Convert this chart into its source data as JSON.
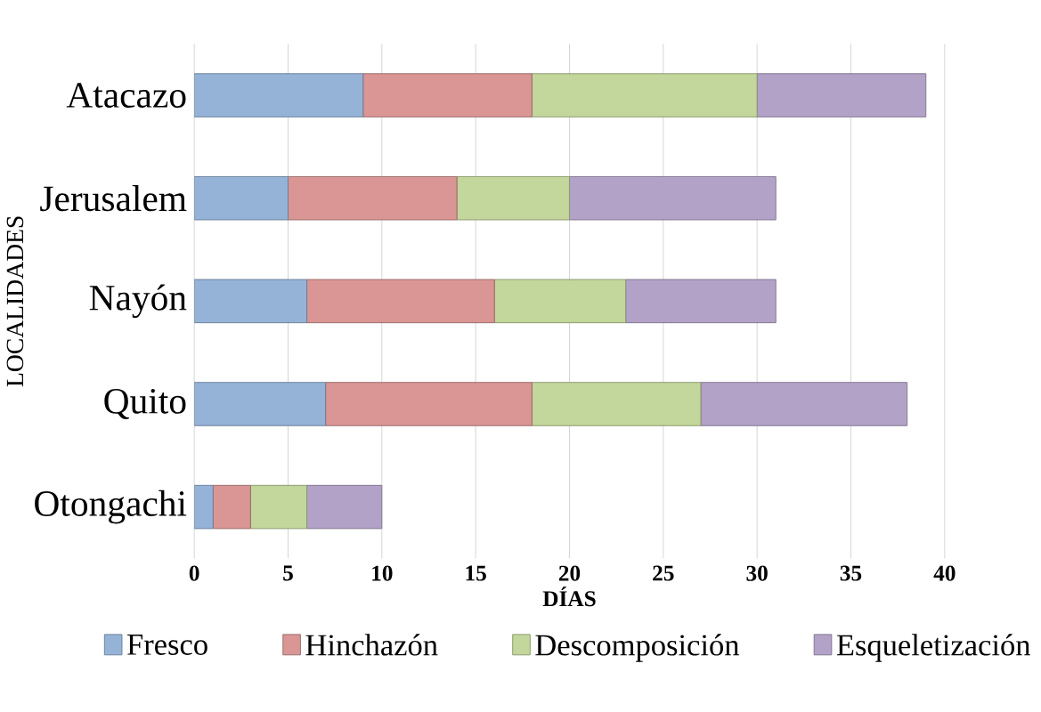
{
  "chart_data": {
    "type": "bar",
    "orientation": "horizontal",
    "stacked": true,
    "categories": [
      "Atacazo",
      "Jerusalem",
      "Nayón",
      "Quito",
      "Otongachi"
    ],
    "series": [
      {
        "name": "Fresco",
        "color": "#95b3d7",
        "values": [
          9,
          5,
          6,
          7,
          1
        ]
      },
      {
        "name": "Hinchazón",
        "color": "#d99694",
        "values": [
          9,
          9,
          10,
          11,
          2
        ]
      },
      {
        "name": "Descomposición",
        "color": "#c3d69b",
        "values": [
          12,
          6,
          7,
          9,
          3
        ]
      },
      {
        "name": "Esqueletización",
        "color": "#b3a2c7",
        "values": [
          9,
          11,
          8,
          11,
          4
        ]
      }
    ],
    "xlim": [
      0,
      40
    ],
    "xticks": [
      0,
      5,
      10,
      15,
      20,
      25,
      30,
      35,
      40
    ],
    "xlabel": "DÍAS",
    "ylabel": "LOCALIDADES",
    "grid": "x",
    "legend": "bottom"
  }
}
